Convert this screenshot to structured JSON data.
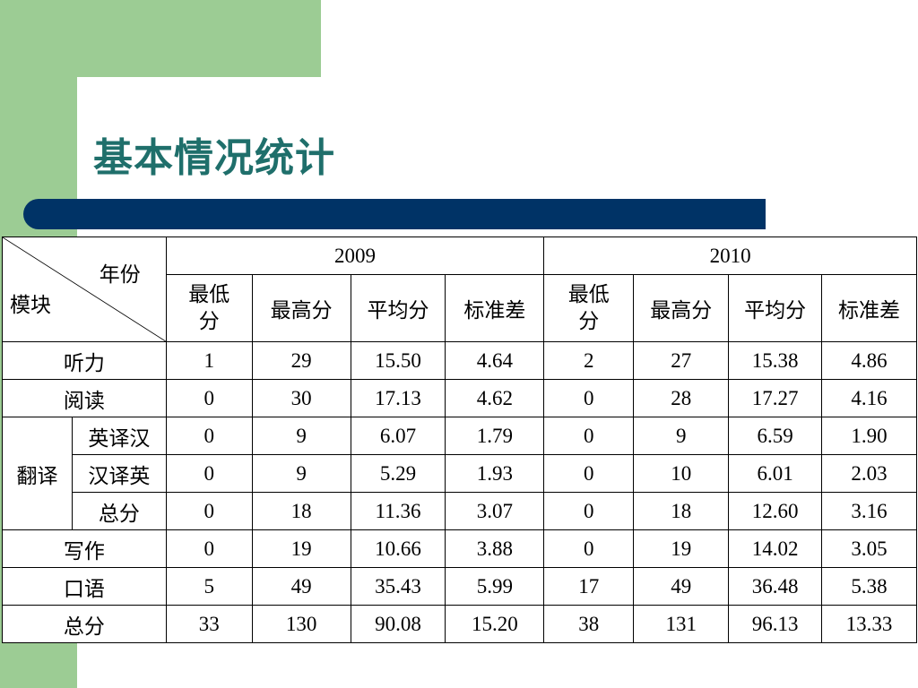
{
  "slide": {
    "title": "基本情况统计",
    "colors": {
      "green": "#9ccc94",
      "bar": "#003366",
      "title": "#1f6f6b"
    }
  },
  "table": {
    "corner_top": "年份",
    "corner_bottom": "模块",
    "years": [
      "2009",
      "2010"
    ],
    "sub_headers_2009": [
      "最低分",
      "最高分",
      "平均分",
      "标准差"
    ],
    "sub_headers_2010": [
      "最低分",
      "最高分",
      "平均分",
      "标准差"
    ],
    "translation_group": "翻译",
    "rows": [
      {
        "label": "听力",
        "values": [
          "1",
          "29",
          "15.50",
          "4.64",
          "2",
          "27",
          "15.38",
          "4.86"
        ]
      },
      {
        "label": "阅读",
        "values": [
          "0",
          "30",
          "17.13",
          "4.62",
          "0",
          "28",
          "17.27",
          "4.16"
        ]
      },
      {
        "label": "英译汉",
        "values": [
          "0",
          "9",
          "6.07",
          "1.79",
          "0",
          "9",
          "6.59",
          "1.90"
        ]
      },
      {
        "label": "汉译英",
        "values": [
          "0",
          "9",
          "5.29",
          "1.93",
          "0",
          "10",
          "6.01",
          "2.03"
        ]
      },
      {
        "label": "总分",
        "values": [
          "0",
          "18",
          "11.36",
          "3.07",
          "0",
          "18",
          "12.60",
          "3.16"
        ]
      },
      {
        "label": "写作",
        "values": [
          "0",
          "19",
          "10.66",
          "3.88",
          "0",
          "19",
          "14.02",
          "3.05"
        ]
      },
      {
        "label": "口语",
        "values": [
          "5",
          "49",
          "35.43",
          "5.99",
          "17",
          "49",
          "36.48",
          "5.38"
        ]
      },
      {
        "label": "总分",
        "values": [
          "33",
          "130",
          "90.08",
          "15.20",
          "38",
          "131",
          "96.13",
          "13.33"
        ]
      }
    ]
  }
}
